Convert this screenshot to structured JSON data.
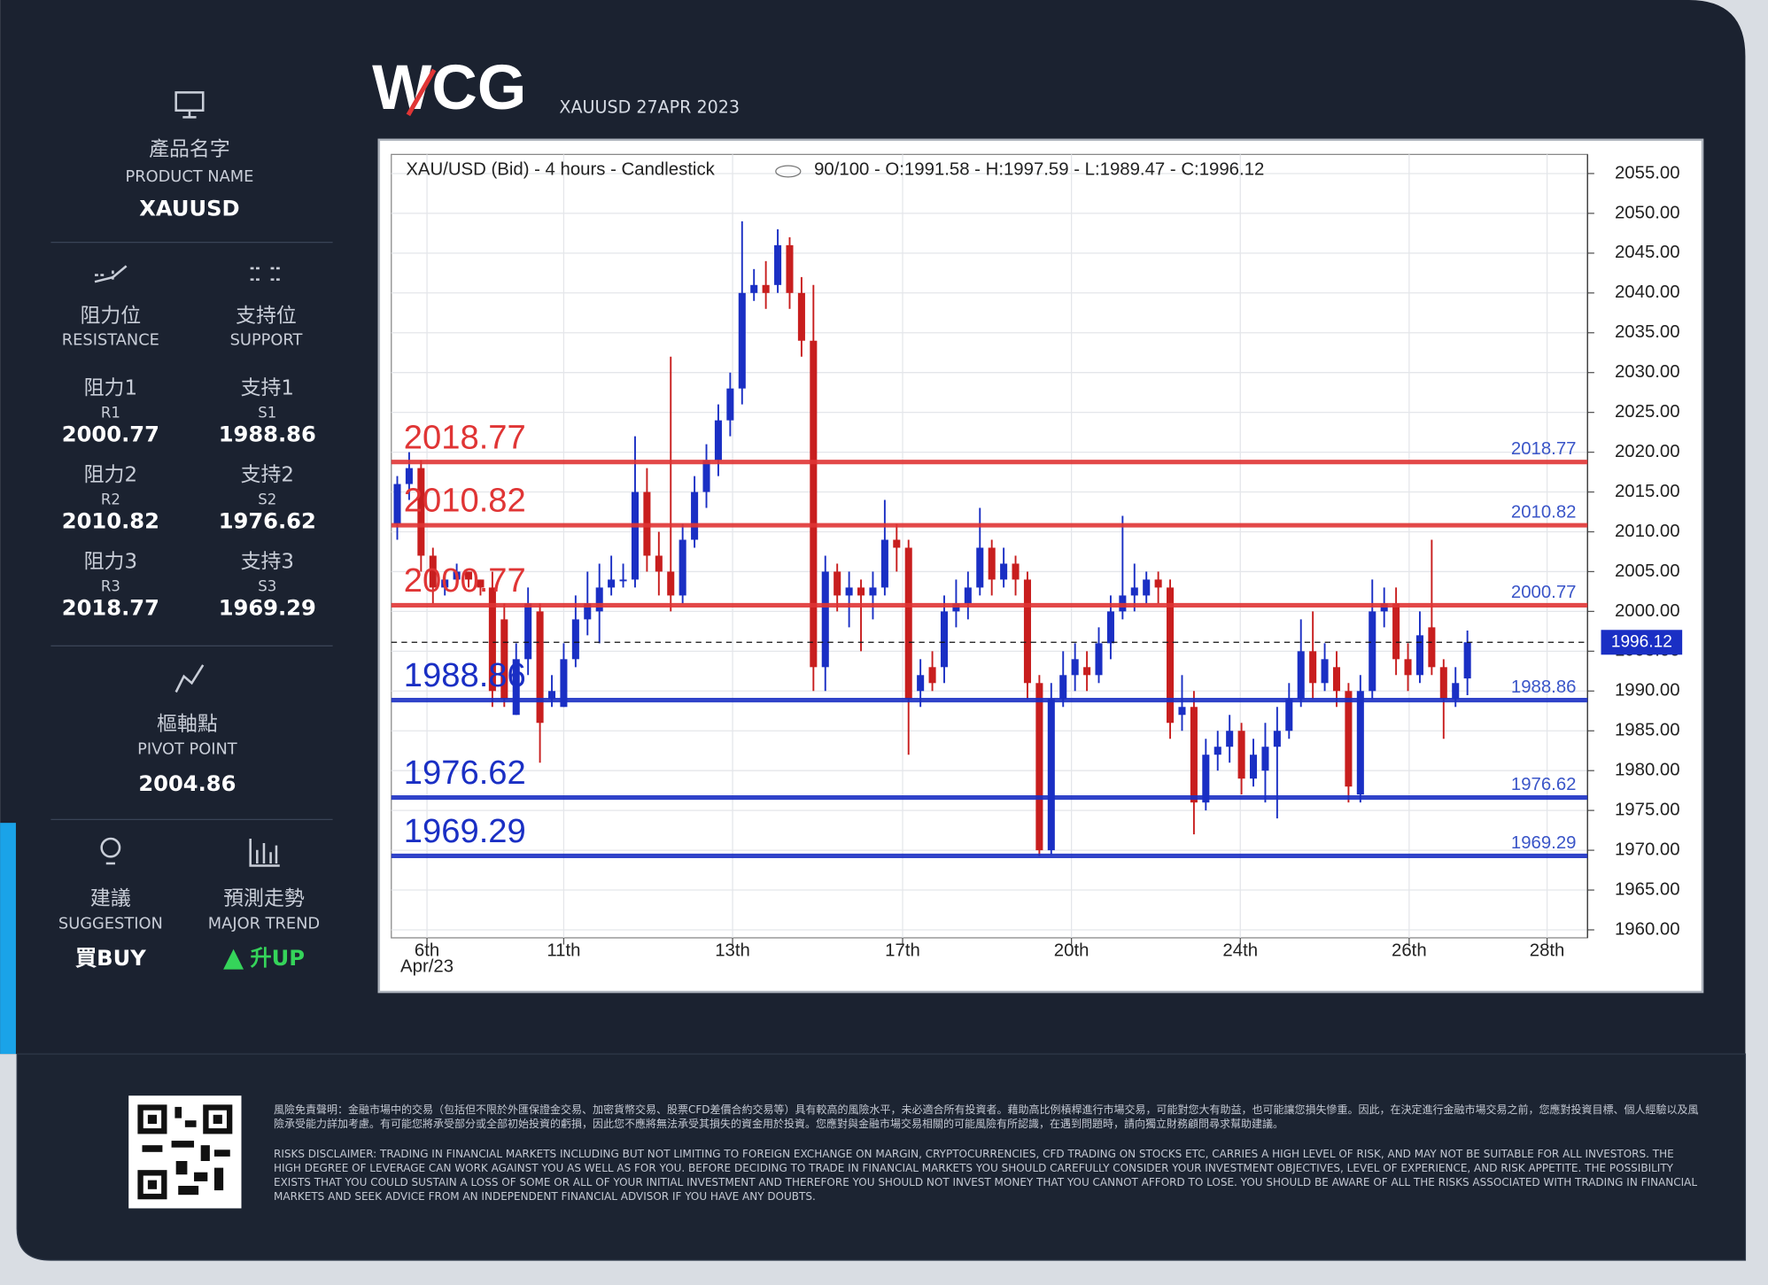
{
  "header": {
    "logo": "WCG",
    "subtitle": "XAUUSD 27APR 2023"
  },
  "sidebar": {
    "product_zh": "產品名字",
    "product_en": "PRODUCT NAME",
    "product": "XAUUSD",
    "resistance_zh": "阻力位",
    "resistance_en": "RESISTANCE",
    "support_zh": "支持位",
    "support_en": "SUPPORT",
    "levels": [
      {
        "r_zh": "阻力1",
        "r_en": "R1",
        "r_value": "2000.77",
        "s_zh": "支持1",
        "s_en": "S1",
        "s_value": "1988.86"
      },
      {
        "r_zh": "阻力2",
        "r_en": "R2",
        "r_value": "2010.82",
        "s_zh": "支持2",
        "s_en": "S2",
        "s_value": "1976.62"
      },
      {
        "r_zh": "阻力3",
        "r_en": "R3",
        "r_value": "2018.77",
        "s_zh": "支持3",
        "s_en": "S3",
        "s_value": "1969.29"
      }
    ],
    "pivot_zh": "樞軸點",
    "pivot_en": "PIVOT POINT",
    "pivot": "2004.86",
    "suggestion_zh": "建議",
    "suggestion_en": "SUGGESTION",
    "suggestion": "買BUY",
    "trend_zh": "預測走勢",
    "trend_en": "MAJOR TREND",
    "trend": "升UP"
  },
  "chart_data": {
    "type": "candlestick",
    "title": "XAU/USD (Bid) - 4 hours - Candlestick",
    "info": "90/100 - O:1991.58 - H:1997.59 - L:1989.47 - C:1996.12",
    "up_color": "#1a2fc4",
    "down_color": "#c81e1e",
    "open": [
      2011,
      2016,
      2018,
      2007,
      2003,
      2004,
      2005,
      2004,
      2003,
      1999,
      1987,
      1994,
      2000,
      1989,
      1988,
      1994,
      1999,
      2000,
      2003,
      2004,
      2004,
      2015,
      2007,
      2005,
      2002,
      2009,
      2015,
      2019,
      2024,
      2028,
      2040,
      2041,
      2041,
      2046,
      2040,
      2034,
      1993,
      2005,
      2002,
      2003,
      2002,
      2003,
      2009,
      2008,
      1990,
      1993,
      1993,
      2000,
      2001,
      2003,
      2008,
      2004,
      2006,
      2004,
      1991,
      1970,
      1989,
      1992,
      1993,
      1992,
      1996,
      2000,
      2002,
      2002,
      2004,
      2003,
      1987,
      1988,
      1976,
      1982,
      1983,
      1985,
      1979,
      1980,
      1983,
      1985,
      1989,
      1995,
      1991,
      1993,
      1990,
      1977,
      1990,
      2000,
      2001,
      1994,
      1992,
      1998,
      1993,
      1989,
      1991.58
    ],
    "high": [
      2017,
      2020,
      2019,
      2008,
      2005,
      2006,
      2005,
      2004,
      2005,
      2001,
      1996,
      2003,
      2001,
      1992,
      1996,
      2002,
      2005,
      2006,
      2007,
      2006,
      2022,
      2018,
      2010,
      2032,
      2011,
      2017,
      2021,
      2026,
      2030,
      2049,
      2043,
      2044,
      2048,
      2047,
      2042,
      2041,
      2007,
      2006,
      2005,
      2004,
      2005,
      2014,
      2011,
      2009,
      1994,
      1995,
      2002,
      2004,
      2005,
      2013,
      2009,
      2008,
      2007,
      2005,
      1992,
      1991,
      1995,
      1996,
      1995,
      1998,
      2002,
      2012,
      2006,
      2005,
      2005,
      2004,
      1992,
      1990,
      1984,
      1985,
      1987,
      1986,
      1984,
      1986,
      1988,
      1991,
      1999,
      2000,
      1996,
      1995,
      1991,
      1992,
      2004,
      2003,
      2003,
      1996,
      2000,
      2009,
      1994,
      1993,
      1997.59
    ],
    "low": [
      2009,
      2014,
      2005,
      2001,
      2002,
      2003,
      2003,
      2002,
      1988,
      1988,
      1987,
      1992,
      1981,
      1988,
      1988,
      1993,
      1997,
      1996,
      2002,
      2003,
      2003,
      2005,
      2002,
      2000,
      2001,
      2008,
      2013,
      2017,
      2022,
      2026,
      2039,
      2038,
      2040,
      2038,
      2032,
      1990,
      1990,
      2000,
      1998,
      1995,
      1999,
      2002,
      2005,
      1982,
      1988,
      1990,
      1991,
      1998,
      1999,
      2002,
      2002,
      2003,
      2002,
      1989,
      1969.3,
      1969.5,
      1988,
      1990,
      1990,
      1991,
      1994,
      1999,
      2000,
      2001,
      2001,
      1984,
      1985,
      1972,
      1975,
      1980,
      1981,
      1977,
      1978,
      1976,
      1974,
      1984,
      1988,
      1989,
      1990,
      1988,
      1976,
      1976,
      1989,
      1998,
      1992,
      1990,
      1991,
      1992,
      1984,
      1988,
      1989.47
    ],
    "close": [
      2016,
      2018,
      2007,
      2003,
      2004,
      2005,
      2004,
      2003,
      1990,
      1989,
      1994,
      2001,
      1986,
      1990,
      1994,
      1999,
      2001,
      2003,
      2004,
      2004,
      2015,
      2007,
      2005,
      2002,
      2009,
      2015,
      2019,
      2024,
      2028,
      2040,
      2041,
      2040,
      2046,
      2040,
      2034,
      1993,
      2005,
      2002,
      2003,
      2002,
      2003,
      2009,
      2008,
      1989,
      1992,
      1991,
      2000,
      2001,
      2003,
      2008,
      2004,
      2006,
      2004,
      1991,
      1970,
      1989,
      1992,
      1994,
      1992,
      1996,
      2000,
      2002,
      2003,
      2004,
      2003,
      1986,
      1988,
      1976,
      1982,
      1983,
      1985,
      1979,
      1982,
      1983,
      1985,
      1989,
      1995,
      1991,
      1994,
      1990,
      1978,
      1990,
      2000,
      2001,
      1994,
      1992,
      1997,
      1993,
      1989,
      1991,
      1996.12
    ],
    "xlim": [
      -0.5,
      100.1
    ],
    "xticks": [
      {
        "value": 2.5,
        "label": "6th"
      },
      {
        "value": 14,
        "label": "11th"
      },
      {
        "value": 28.2,
        "label": "13th"
      },
      {
        "value": 42.5,
        "label": "17th"
      },
      {
        "value": 56.7,
        "label": "20th"
      },
      {
        "value": 70.9,
        "label": "24th"
      },
      {
        "value": 85.1,
        "label": "26th"
      },
      {
        "value": 96.7,
        "label": "28th"
      }
    ],
    "x_sublabel": "Apr/23",
    "ylim": [
      1959,
      2057.4
    ],
    "yticks": [
      {
        "value": 1960,
        "label": "1960.00"
      },
      {
        "value": 1965,
        "label": "1965.00"
      },
      {
        "value": 1970,
        "label": "1970.00"
      },
      {
        "value": 1975,
        "label": "1975.00"
      },
      {
        "value": 1980,
        "label": "1980.00"
      },
      {
        "value": 1985,
        "label": "1985.00"
      },
      {
        "value": 1990,
        "label": "1990.00"
      },
      {
        "value": 1995,
        "label": "1995.00"
      },
      {
        "value": 2000,
        "label": "2000.00"
      },
      {
        "value": 2005,
        "label": "2005.00"
      },
      {
        "value": 2010,
        "label": "2010.00"
      },
      {
        "value": 2015,
        "label": "2015.00"
      },
      {
        "value": 2020,
        "label": "2020.00"
      },
      {
        "value": 2025,
        "label": "2025.00"
      },
      {
        "value": 2030,
        "label": "2030.00"
      },
      {
        "value": 2035,
        "label": "2035.00"
      },
      {
        "value": 2040,
        "label": "2040.00"
      },
      {
        "value": 2045,
        "label": "2045.00"
      },
      {
        "value": 2050,
        "label": "2050.00"
      },
      {
        "value": 2055,
        "label": "2055.00"
      }
    ],
    "grid": true,
    "levels": [
      {
        "value": 2018.77,
        "color": "#e03535"
      },
      {
        "value": 2010.82,
        "color": "#e03535"
      },
      {
        "value": 2000.77,
        "color": "#e03535"
      },
      {
        "value": 1988.86,
        "color": "#1a2fc4"
      },
      {
        "value": 1976.62,
        "color": "#1a2fc4"
      },
      {
        "value": 1969.29,
        "color": "#1a2fc4"
      }
    ],
    "last": 1996.12
  },
  "disclaimer": {
    "zh": "風險免責聲明：金融市場中的交易（包括但不限於外匯保證金交易、加密貨幣交易、股票CFD差價合約交易等）具有較高的風險水平，未必適合所有投資者。藉助高比例槓桿進行市場交易，可能對您大有助益，也可能讓您損失慘重。因此，在決定進行金融市場交易之前，您應對投資目標、個人經驗以及風險承受能力詳加考慮。有可能您將承受部分或全部初始投資的虧損，因此您不應將無法承受其損失的資金用於投資。您應對與金融市場交易相關的可能風險有所認識，在遇到問題時，請向獨立財務顧問尋求幫助建議。",
    "en": "RISKS DISCLAIMER: TRADING IN FINANCIAL MARKETS INCLUDING BUT NOT LIMITING TO FOREIGN EXCHANGE ON MARGIN, CRYPTOCURRENCIES, CFD TRADING ON STOCKS ETC, CARRIES A HIGH LEVEL OF RISK, AND MAY NOT BE SUITABLE FOR ALL INVESTORS. THE HIGH DEGREE OF LEVERAGE CAN WORK AGAINST YOU AS WELL AS FOR YOU. BEFORE DECIDING TO TRADE IN FINANCIAL MARKETS YOU SHOULD CAREFULLY CONSIDER YOUR INVESTMENT OBJECTIVES, LEVEL OF EXPERIENCE, AND RISK APPETITE. THE POSSIBILITY EXISTS THAT YOU COULD SUSTAIN A LOSS OF SOME OR ALL OF YOUR INITIAL INVESTMENT AND THEREFORE YOU SHOULD NOT INVEST MONEY THAT YOU CANNOT AFFORD TO LOSE. YOU SHOULD BE AWARE OF ALL THE RISKS ASSOCIATED WITH TRADING IN FINANCIAL MARKETS AND SEEK ADVICE FROM AN INDEPENDENT FINANCIAL ADVISOR IF YOU HAVE ANY DOUBTS."
  }
}
